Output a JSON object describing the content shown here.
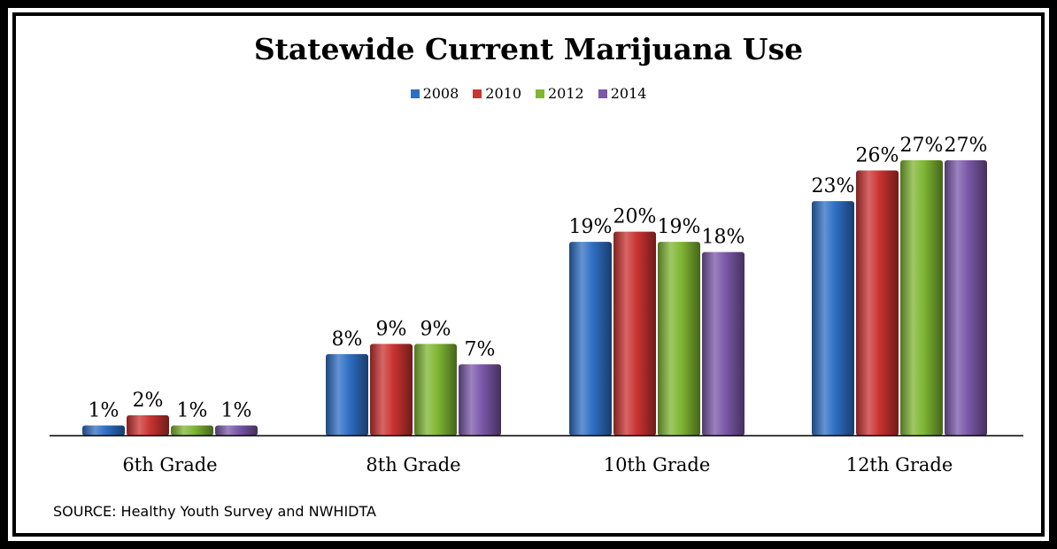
{
  "chart_data": {
    "type": "bar",
    "title": "Statewide Current Marijuana Use",
    "categories": [
      "6th Grade",
      "8th Grade",
      "10th Grade",
      "12th Grade"
    ],
    "series": [
      {
        "name": "2008",
        "values": [
          1,
          8,
          19,
          23
        ],
        "labels": [
          "1%",
          "8%",
          "19%",
          "23%"
        ],
        "color": "#2e6fc4"
      },
      {
        "name": "2010",
        "values": [
          2,
          9,
          20,
          26
        ],
        "labels": [
          "2%",
          "9%",
          "20%",
          "26%"
        ],
        "color": "#c93331"
      },
      {
        "name": "2012",
        "values": [
          1,
          9,
          19,
          27
        ],
        "labels": [
          "1%",
          "9%",
          "19%",
          "27%"
        ],
        "color": "#7fb632"
      },
      {
        "name": "2014",
        "values": [
          1,
          7,
          18,
          27
        ],
        "labels": [
          "1%",
          "7%",
          "18%",
          "27%"
        ],
        "color": "#7b58a8"
      }
    ],
    "ylim": [
      0,
      28
    ],
    "grid": false,
    "legend_position": "top-center"
  },
  "source_note": "SOURCE: Healthy Youth Survey and NWHIDTA"
}
